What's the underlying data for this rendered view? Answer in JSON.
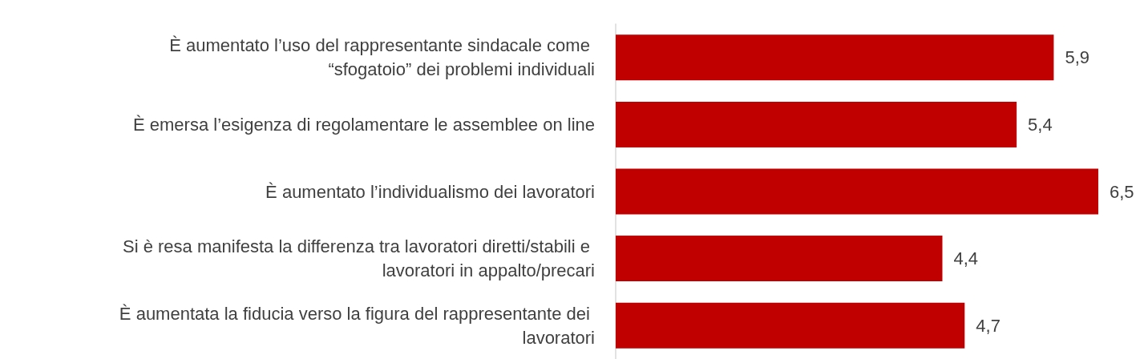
{
  "chart_data": {
    "type": "bar",
    "orientation": "horizontal",
    "categories": [
      "È aumentato l’uso del rappresentante sindacale come “sfogatoio” dei problemi individuali",
      "È emersa l’esigenza di regolamentare le assemblee on line",
      "È aumentato l’individualismo dei lavoratori",
      "Si è resa manifesta la differenza tra lavoratori diretti/stabili e lavoratori in appalto/precari",
      "È aumentata la fiducia verso la figura del rappresentante dei lavoratori"
    ],
    "values": [
      5.9,
      5.4,
      6.5,
      4.4,
      4.7
    ],
    "value_labels": [
      "5,9",
      "5,4",
      "6,5",
      "4,4",
      "4,7"
    ],
    "color": "#c00000",
    "xlim": [
      0,
      6.5
    ]
  }
}
